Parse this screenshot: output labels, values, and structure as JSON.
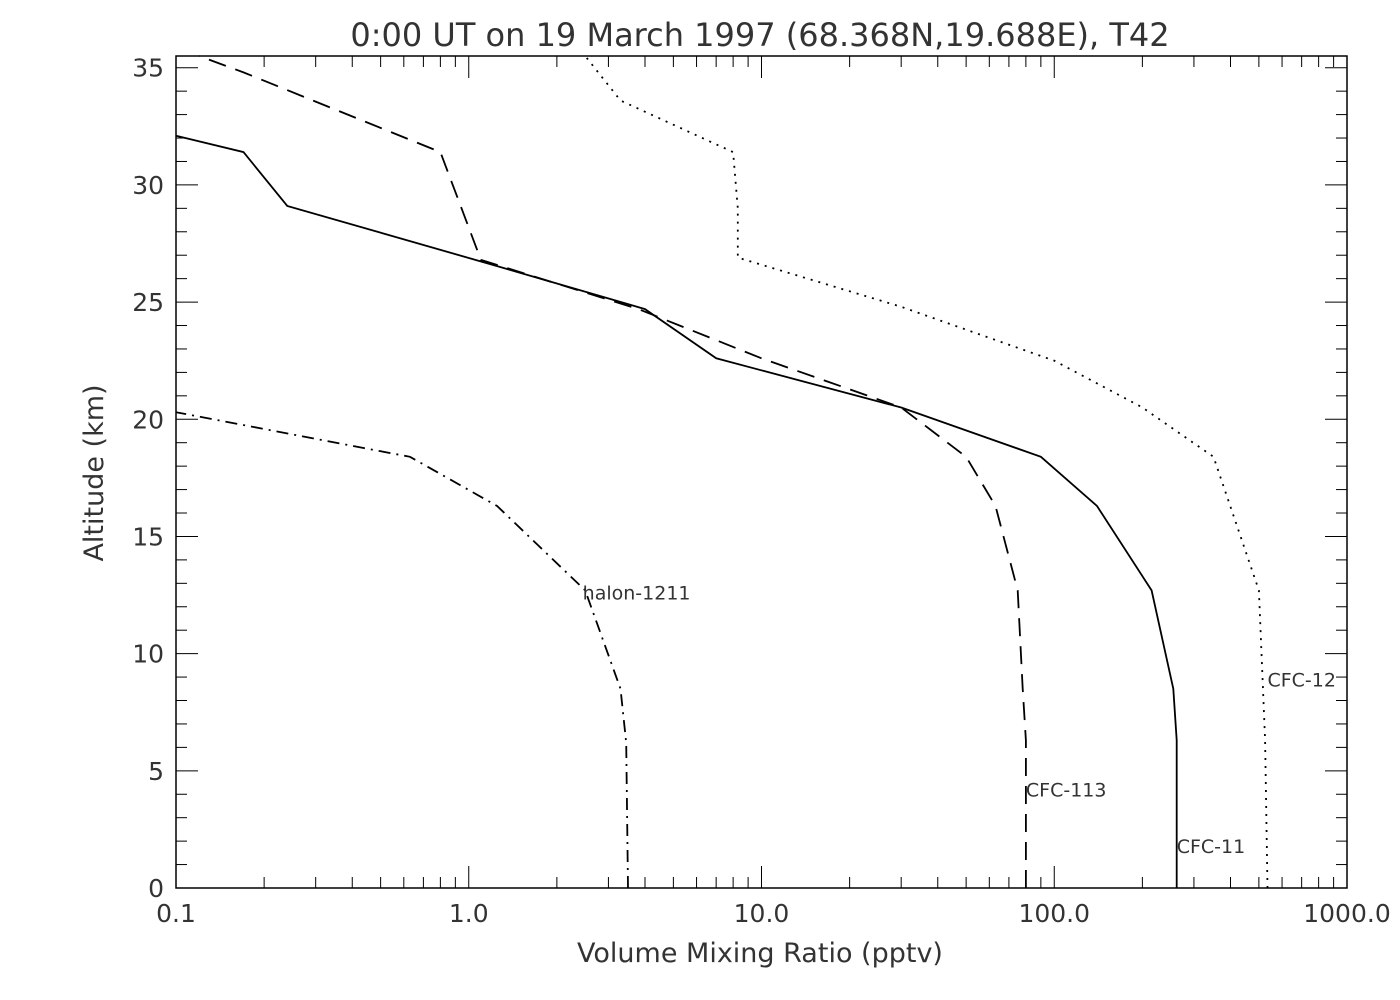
{
  "chart_data": {
    "type": "line",
    "title": "0:00 UT on 19 March 1997 (68.368N,19.688E), T42",
    "xlabel": "Volume Mixing Ratio (pptv)",
    "ylabel": "Altitude (km)",
    "xscale": "log",
    "xlim": [
      0.1,
      1000
    ],
    "ylim": [
      0,
      35.5
    ],
    "x_ticks": [
      0.1,
      1,
      10,
      100,
      1000
    ],
    "x_tick_labels": [
      "0.1",
      "1.0",
      "10.0",
      "100.0",
      "1000.0"
    ],
    "y_ticks": [
      0,
      5,
      10,
      15,
      20,
      25,
      30,
      35
    ],
    "y_tick_labels": [
      "0",
      "5",
      "10",
      "15",
      "20",
      "25",
      "30",
      "35"
    ],
    "grid": false,
    "series": [
      {
        "name": "CFC-11",
        "dash": "solid",
        "x": [
          262,
          262,
          255,
          215,
          140,
          90,
          30,
          7,
          4,
          1.2,
          0.24,
          0.17,
          0.1
        ],
        "y": [
          0,
          6.3,
          8.5,
          12.7,
          16.3,
          18.4,
          20.5,
          22.6,
          24.7,
          26.6,
          29.1,
          31.4,
          32.1
        ]
      },
      {
        "name": "CFC-12",
        "dash": "dotted",
        "x": [
          535,
          525,
          500,
          350,
          200,
          100,
          30,
          8.3,
          8.3,
          8.0,
          3.3,
          2.5
        ],
        "y": [
          0,
          6.3,
          12.7,
          18.4,
          20.5,
          22.5,
          24.8,
          26.9,
          29.0,
          31.4,
          33.6,
          35.5
        ]
      },
      {
        "name": "CFC-113",
        "dash": "dashed",
        "x": [
          80,
          80,
          78,
          75,
          63,
          50,
          30,
          10,
          3.8,
          1.1,
          0.8,
          0.17,
          0.12
        ],
        "y": [
          0,
          6.3,
          8.5,
          12.7,
          16.3,
          18.4,
          20.5,
          22.6,
          24.7,
          26.8,
          31.4,
          34.8,
          35.5
        ]
      },
      {
        "name": "halon-1211",
        "dash": "dashdot",
        "x": [
          3.5,
          3.45,
          3.3,
          2.5,
          1.25,
          0.63,
          0.1
        ],
        "y": [
          0,
          6.2,
          8.5,
          12.7,
          16.3,
          18.4,
          20.3
        ]
      }
    ],
    "series_labels": [
      {
        "text": "CFC-11",
        "x": 262,
        "y": 1.5
      },
      {
        "text": "CFC-12",
        "x": 535,
        "y": 8.6
      },
      {
        "text": "CFC-113",
        "x": 80,
        "y": 3.9
      },
      {
        "text": "halon-1211",
        "x": 2.45,
        "y": 12.3
      }
    ]
  }
}
